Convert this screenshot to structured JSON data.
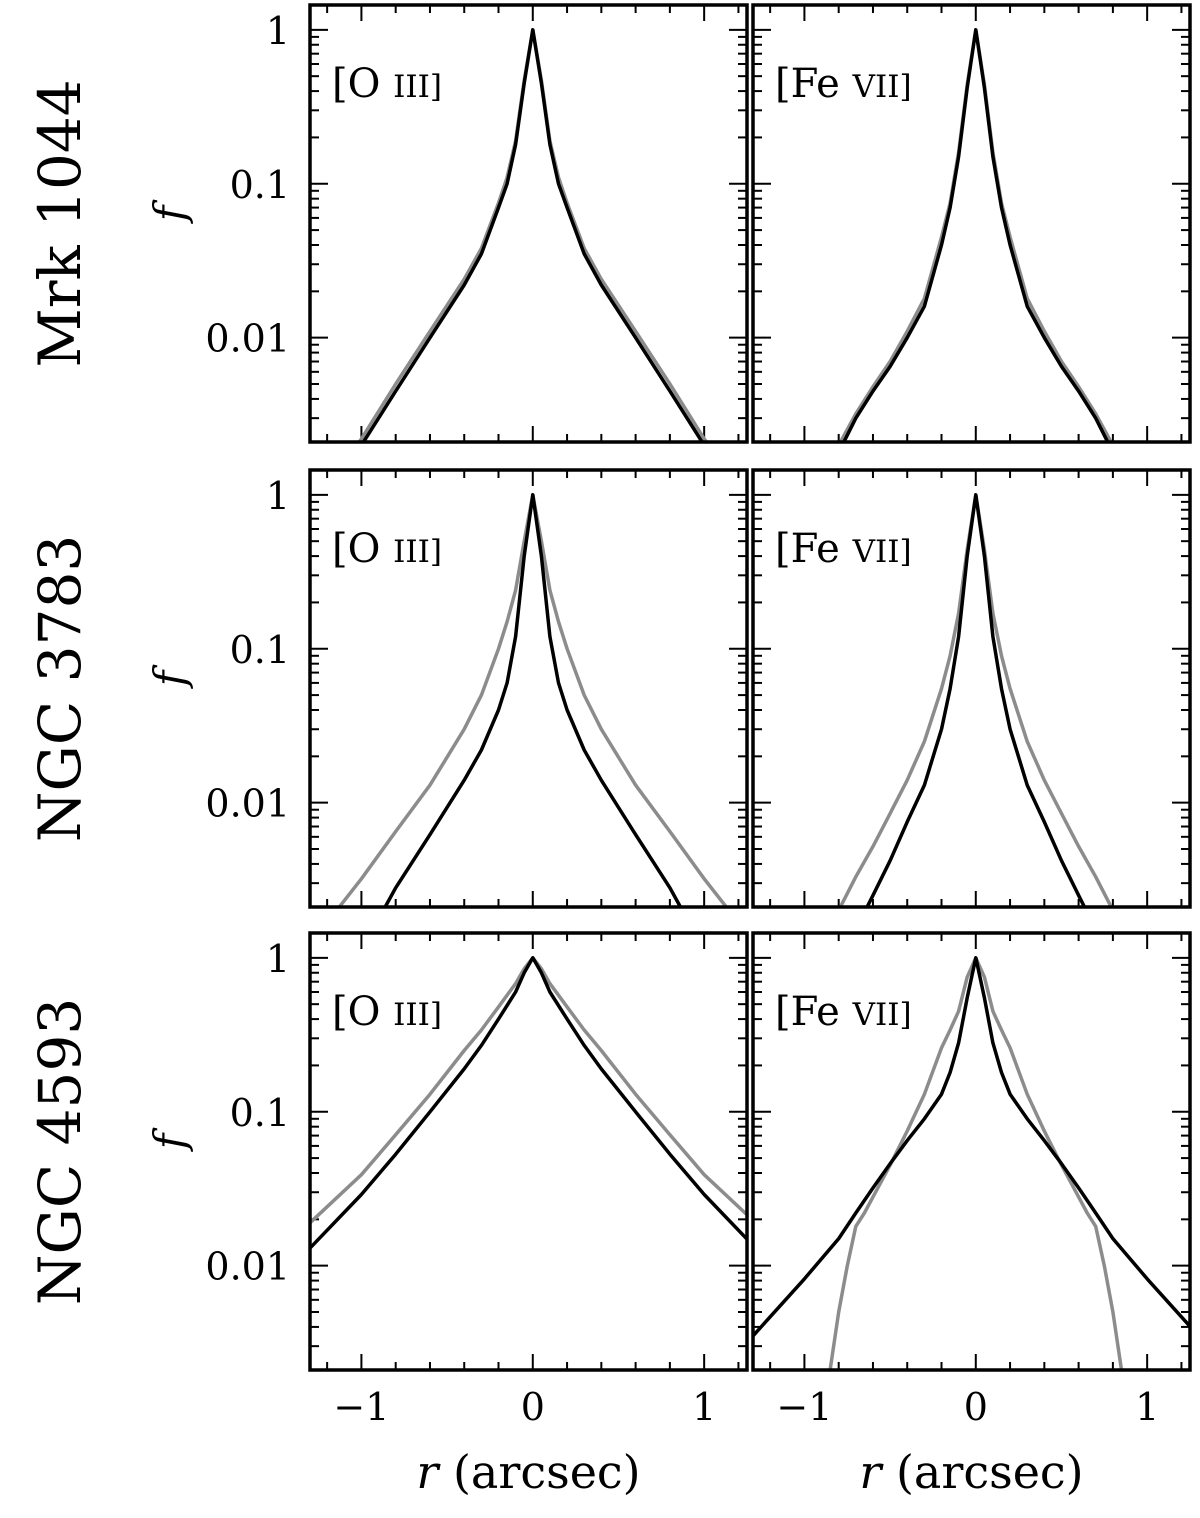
{
  "chart_data": {
    "type": "line",
    "x_axis": {
      "label_var": "r",
      "label_unit": "(arcsec)",
      "lim": [
        -1.3,
        1.25
      ],
      "ticks": [
        -1,
        0,
        1
      ],
      "tick_labels": [
        "−1",
        "0",
        "1"
      ]
    },
    "y_axis": {
      "label": "f",
      "scale": "log",
      "lim": [
        0.0021,
        1.45
      ],
      "ticks": [
        1,
        0.1,
        0.01
      ],
      "tick_labels": [
        "1",
        "0.1",
        "0.01"
      ]
    },
    "rows": [
      "Mrk 1044",
      "NGC 3783",
      "NGC 4593"
    ],
    "columns": [
      {
        "main": "[O",
        "sub": "III]"
      },
      {
        "main": "[Fe",
        "sub": "VII]"
      }
    ],
    "series_colors": {
      "black": "#000000",
      "gray": "#8c8c8c"
    },
    "panels": [
      {
        "row": 0,
        "col": 0,
        "black": {
          "x": [
            0,
            0.05,
            0.1,
            0.15,
            0.2,
            0.3,
            0.4,
            0.6,
            0.8,
            1.0,
            1.3
          ],
          "y": [
            1,
            0.45,
            0.18,
            0.1,
            0.07,
            0.035,
            0.022,
            0.01,
            0.0045,
            0.002,
            0.0007
          ]
        },
        "gray": {
          "x": [
            0,
            0.05,
            0.1,
            0.15,
            0.2,
            0.3,
            0.4,
            0.6,
            0.8,
            1.0,
            1.3
          ],
          "y": [
            1,
            0.47,
            0.19,
            0.11,
            0.075,
            0.038,
            0.024,
            0.011,
            0.005,
            0.0022,
            0.0008
          ]
        }
      },
      {
        "row": 0,
        "col": 1,
        "black": {
          "x": [
            0,
            0.05,
            0.1,
            0.15,
            0.2,
            0.3,
            0.4,
            0.5,
            0.6,
            0.7,
            0.8,
            1.0
          ],
          "y": [
            1,
            0.42,
            0.15,
            0.07,
            0.04,
            0.016,
            0.01,
            0.0065,
            0.0045,
            0.003,
            0.0018,
            0.0006
          ]
        },
        "gray": {
          "x": [
            0,
            0.05,
            0.1,
            0.15,
            0.2,
            0.3,
            0.4,
            0.5,
            0.6,
            0.7,
            0.8,
            1.0
          ],
          "y": [
            1,
            0.44,
            0.16,
            0.075,
            0.045,
            0.018,
            0.011,
            0.007,
            0.0048,
            0.0032,
            0.002,
            0.0007
          ]
        }
      },
      {
        "row": 1,
        "col": 0,
        "black": {
          "x": [
            0,
            0.05,
            0.1,
            0.15,
            0.2,
            0.3,
            0.4,
            0.6,
            0.8,
            1.0,
            1.3
          ],
          "y": [
            1,
            0.4,
            0.12,
            0.06,
            0.04,
            0.022,
            0.014,
            0.0062,
            0.0028,
            0.0011,
            0.0003
          ]
        },
        "gray": {
          "x": [
            0,
            0.05,
            0.1,
            0.15,
            0.2,
            0.3,
            0.4,
            0.6,
            0.8,
            1.0,
            1.3
          ],
          "y": [
            1,
            0.5,
            0.24,
            0.15,
            0.1,
            0.05,
            0.03,
            0.013,
            0.0065,
            0.0032,
            0.0012
          ]
        }
      },
      {
        "row": 1,
        "col": 1,
        "black": {
          "x": [
            0,
            0.05,
            0.1,
            0.15,
            0.2,
            0.3,
            0.4,
            0.5,
            0.6,
            0.7,
            0.8,
            1.0
          ],
          "y": [
            1,
            0.4,
            0.12,
            0.055,
            0.03,
            0.013,
            0.0075,
            0.0042,
            0.0025,
            0.0015,
            0.0008,
            0.0002
          ]
        },
        "gray": {
          "x": [
            0,
            0.05,
            0.1,
            0.15,
            0.2,
            0.3,
            0.4,
            0.5,
            0.6,
            0.7,
            0.8,
            1.0
          ],
          "y": [
            1,
            0.44,
            0.17,
            0.09,
            0.055,
            0.025,
            0.014,
            0.0085,
            0.0052,
            0.0033,
            0.002,
            0.0007
          ]
        }
      },
      {
        "row": 2,
        "col": 0,
        "black": {
          "x": [
            0,
            0.05,
            0.1,
            0.2,
            0.3,
            0.4,
            0.6,
            0.8,
            1.0,
            1.3
          ],
          "y": [
            1,
            0.8,
            0.6,
            0.4,
            0.27,
            0.19,
            0.1,
            0.053,
            0.029,
            0.013
          ]
        },
        "gray": {
          "x": [
            0,
            0.05,
            0.1,
            0.2,
            0.3,
            0.4,
            0.6,
            0.8,
            1.0,
            1.3
          ],
          "y": [
            1,
            0.85,
            0.68,
            0.48,
            0.34,
            0.25,
            0.13,
            0.071,
            0.039,
            0.019
          ]
        }
      },
      {
        "row": 2,
        "col": 1,
        "black": {
          "x": [
            0,
            0.05,
            0.1,
            0.15,
            0.2,
            0.3,
            0.4,
            0.5,
            0.6,
            0.7,
            0.8,
            1.0,
            1.3
          ],
          "y": [
            1,
            0.55,
            0.28,
            0.18,
            0.13,
            0.09,
            0.065,
            0.046,
            0.032,
            0.022,
            0.015,
            0.0082,
            0.0035
          ]
        },
        "gray": {
          "x": [
            0,
            0.05,
            0.1,
            0.15,
            0.2,
            0.3,
            0.4,
            0.5,
            0.6,
            0.65,
            0.7,
            0.75,
            0.8,
            0.85
          ],
          "y": [
            1,
            0.75,
            0.45,
            0.34,
            0.26,
            0.13,
            0.075,
            0.045,
            0.028,
            0.022,
            0.018,
            0.01,
            0.005,
            0.0021
          ]
        }
      }
    ]
  }
}
